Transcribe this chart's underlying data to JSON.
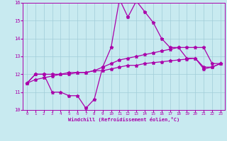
{
  "xlabel": "Windchill (Refroidissement éolien,°C)",
  "xlim": [
    -0.5,
    23.5
  ],
  "ylim": [
    10,
    16
  ],
  "yticks": [
    10,
    11,
    12,
    13,
    14,
    15,
    16
  ],
  "xticks": [
    0,
    1,
    2,
    3,
    4,
    5,
    6,
    7,
    8,
    9,
    10,
    11,
    12,
    13,
    14,
    15,
    16,
    17,
    18,
    19,
    20,
    21,
    22,
    23
  ],
  "background_color": "#c8eaf0",
  "grid_color": "#a0ccd8",
  "line_color": "#aa00aa",
  "hours": [
    0,
    1,
    2,
    3,
    4,
    5,
    6,
    7,
    8,
    9,
    10,
    11,
    12,
    13,
    14,
    15,
    16,
    17,
    18,
    19,
    20,
    21,
    22,
    23
  ],
  "line_top": [
    11.5,
    12.0,
    12.0,
    11.0,
    11.0,
    10.8,
    10.8,
    10.1,
    10.6,
    12.4,
    13.5,
    16.2,
    15.2,
    16.1,
    15.5,
    14.9,
    14.0,
    13.5,
    13.5,
    12.9,
    12.9,
    12.4,
    12.4,
    12.6
  ],
  "line_mid": [
    11.5,
    12.0,
    12.0,
    12.0,
    12.0,
    12.1,
    12.1,
    12.1,
    12.2,
    12.4,
    12.6,
    12.8,
    12.9,
    13.0,
    13.1,
    13.2,
    13.3,
    13.4,
    13.5,
    13.5,
    13.5,
    13.5,
    12.6,
    12.6
  ],
  "line_bot": [
    11.5,
    11.7,
    11.8,
    11.9,
    12.0,
    12.0,
    12.1,
    12.1,
    12.2,
    12.2,
    12.3,
    12.4,
    12.5,
    12.5,
    12.6,
    12.65,
    12.7,
    12.75,
    12.8,
    12.85,
    12.9,
    12.3,
    12.4,
    12.6
  ]
}
